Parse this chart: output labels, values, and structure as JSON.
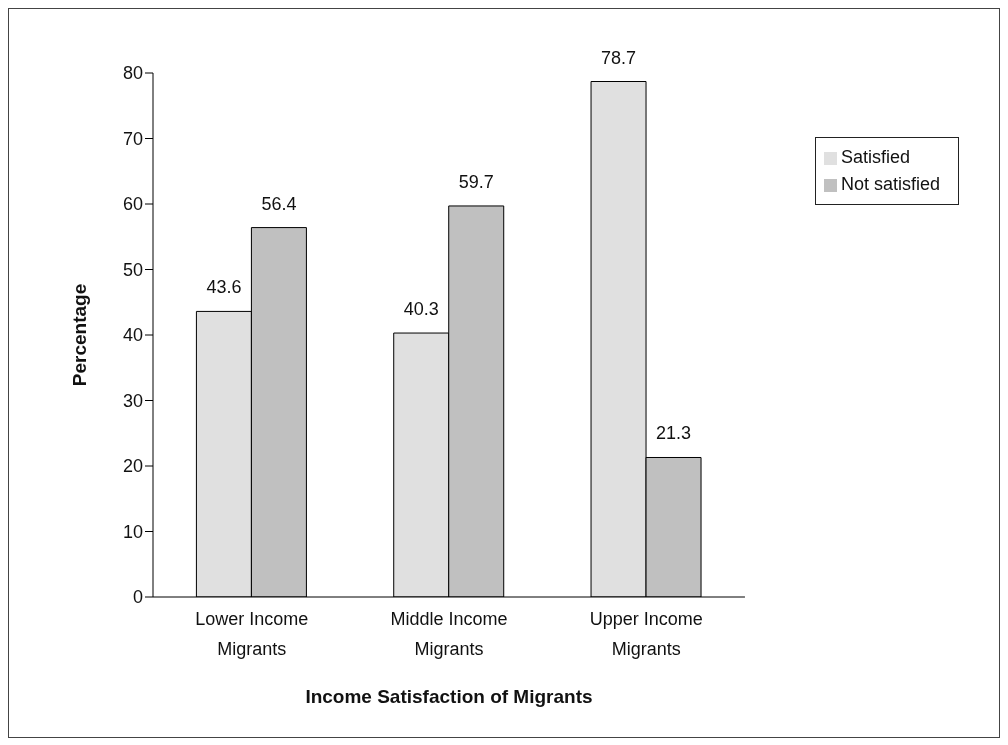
{
  "chart_data": {
    "type": "bar",
    "xlabel": "Income Satisfaction of Migrants",
    "ylabel": "Percentage",
    "categories": [
      "Lower Income Migrants",
      "Middle Income Migrants",
      "Upper Income Migrants"
    ],
    "series": [
      {
        "name": "Satisfied",
        "color": "#e0e0e0",
        "values": [
          43.6,
          40.3,
          78.7
        ]
      },
      {
        "name": "Not satisfied",
        "color": "#c0c0c0",
        "values": [
          56.4,
          59.7,
          21.3
        ]
      }
    ],
    "ylim": [
      0,
      80
    ],
    "yticks": [
      0,
      10,
      20,
      30,
      40,
      50,
      60,
      70,
      80
    ],
    "data_labels": true,
    "legend": "top right",
    "grid": false
  }
}
